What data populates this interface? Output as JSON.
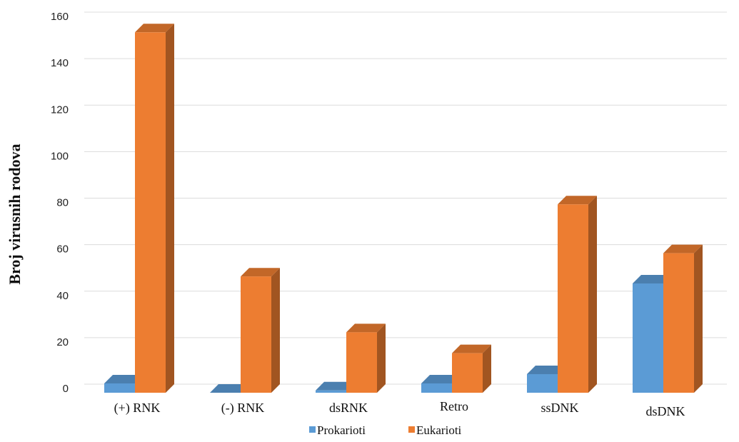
{
  "chart_data": {
    "type": "bar",
    "title": "",
    "xlabel": "",
    "ylabel": "Broj virusnih rodova",
    "categories": [
      "(+) RNK",
      "(-) RNK",
      "dsRNK",
      "Retro",
      "ssDNK",
      "dsDNK"
    ],
    "series": [
      {
        "name": "Prokarioti",
        "values": [
          4,
          0,
          1,
          4,
          8,
          47
        ],
        "color": "#5b9bd5"
      },
      {
        "name": "Eukarioti",
        "values": [
          155,
          50,
          26,
          17,
          81,
          60
        ],
        "color": "#ed7d31"
      }
    ],
    "ylim": [
      0,
      160
    ],
    "yticks": [
      0,
      20,
      40,
      60,
      80,
      100,
      120,
      140,
      160
    ],
    "grid": true,
    "legend_position": "bottom",
    "style": "3d-column"
  }
}
